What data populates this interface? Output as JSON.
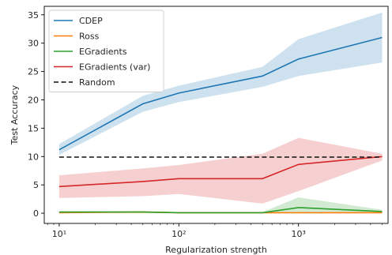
{
  "chart_data": {
    "type": "line",
    "xlabel": "Regularization strength",
    "ylabel": "Test Accuracy",
    "x_scale": "log",
    "xlim": [
      7.5,
      5600
    ],
    "ylim": [
      -1.8,
      36.5
    ],
    "x_ticks": [
      {
        "value": 10,
        "label": "10¹"
      },
      {
        "value": 100,
        "label": "10²"
      },
      {
        "value": 1000,
        "label": "10³"
      }
    ],
    "y_ticks": [
      0,
      5,
      10,
      15,
      20,
      25,
      30,
      35
    ],
    "grid": false,
    "legend": {
      "placement": "top-left"
    },
    "series": [
      {
        "name": "CDEP",
        "color": "#1f77b4",
        "style": "solid",
        "x": [
          10,
          50,
          100,
          500,
          1000,
          5000
        ],
        "y": [
          11.2,
          19.3,
          21.2,
          24.2,
          27.2,
          31.0
        ],
        "lower": [
          10.3,
          17.9,
          19.6,
          22.3,
          24.2,
          26.6
        ],
        "upper": [
          12.2,
          20.7,
          22.5,
          25.8,
          30.7,
          35.4
        ]
      },
      {
        "name": "Ross",
        "color": "#ff7f0e",
        "style": "solid",
        "x": [
          10,
          50,
          100,
          500,
          1000,
          5000
        ],
        "y": [
          0.1,
          0.2,
          0.1,
          0.1,
          0.1,
          0.1
        ],
        "lower": [
          0.0,
          0.0,
          0.0,
          0.0,
          0.0,
          0.0
        ],
        "upper": [
          0.3,
          0.4,
          0.2,
          0.2,
          0.2,
          0.2
        ]
      },
      {
        "name": "EGradients",
        "color": "#2ca02c",
        "style": "solid",
        "x": [
          10,
          50,
          100,
          500,
          1000,
          5000
        ],
        "y": [
          0.2,
          0.2,
          0.1,
          0.1,
          1.0,
          0.3
        ],
        "lower": [
          0.1,
          0.1,
          0.0,
          0.0,
          0.0,
          0.0
        ],
        "upper": [
          0.3,
          0.3,
          0.2,
          0.2,
          2.8,
          0.6
        ]
      },
      {
        "name": "EGradients (var)",
        "color": "#d62728",
        "style": "solid",
        "x": [
          10,
          50,
          100,
          500,
          1000,
          5000
        ],
        "y": [
          4.7,
          5.6,
          6.1,
          6.1,
          8.6,
          10.0
        ],
        "lower": [
          2.7,
          3.0,
          3.4,
          1.7,
          3.9,
          9.3
        ],
        "upper": [
          6.7,
          7.9,
          8.5,
          10.5,
          13.3,
          10.5
        ]
      },
      {
        "name": "Random",
        "color": "#111111",
        "style": "dashed",
        "x": [
          10,
          5000
        ],
        "y": [
          9.9,
          9.9
        ]
      }
    ]
  }
}
